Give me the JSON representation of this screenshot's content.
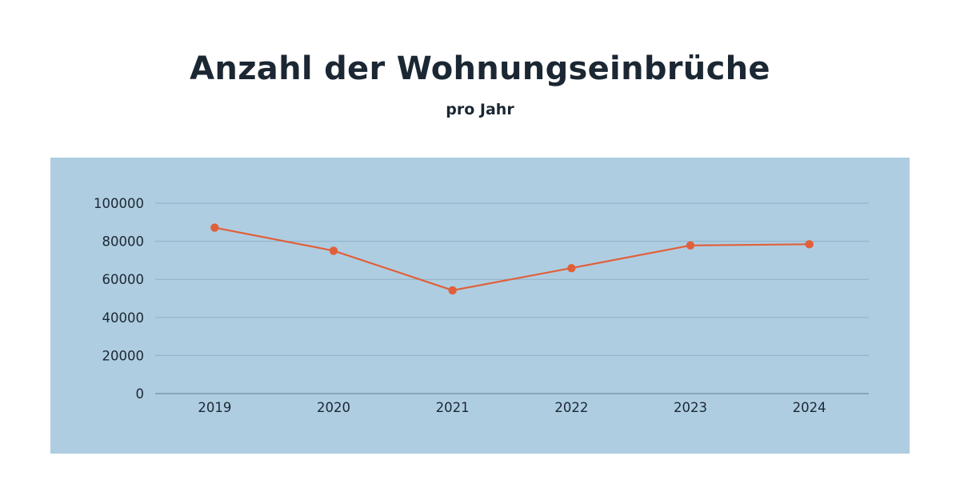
{
  "header": {
    "title": "Anzahl der Wohnungseinbrüche",
    "subtitle": "pro Jahr"
  },
  "colors": {
    "background": "#ffffff",
    "panel": "#afcde1",
    "gridline": "#8fb0c6",
    "axis": "#7e98aa",
    "series": "#e0603a",
    "text": "#1b2733"
  },
  "chart_data": {
    "type": "line",
    "title": "Anzahl der Wohnungseinbrüche",
    "subtitle": "pro Jahr",
    "xlabel": "",
    "ylabel": "",
    "categories": [
      "2019",
      "2020",
      "2021",
      "2022",
      "2023",
      "2024"
    ],
    "series": [
      {
        "name": "Wohnungseinbrüche",
        "values": [
          87145,
          75023,
          54236,
          65908,
          77819,
          78436
        ],
        "color": "#e0603a",
        "markers": true
      }
    ],
    "ylim": [
      0,
      100000
    ],
    "yticks": [
      0,
      20000,
      40000,
      60000,
      80000,
      100000
    ],
    "ytick_labels": [
      "0",
      "20000",
      "40000",
      "60000",
      "80000",
      "100000"
    ],
    "grid": true,
    "legend": "none"
  }
}
